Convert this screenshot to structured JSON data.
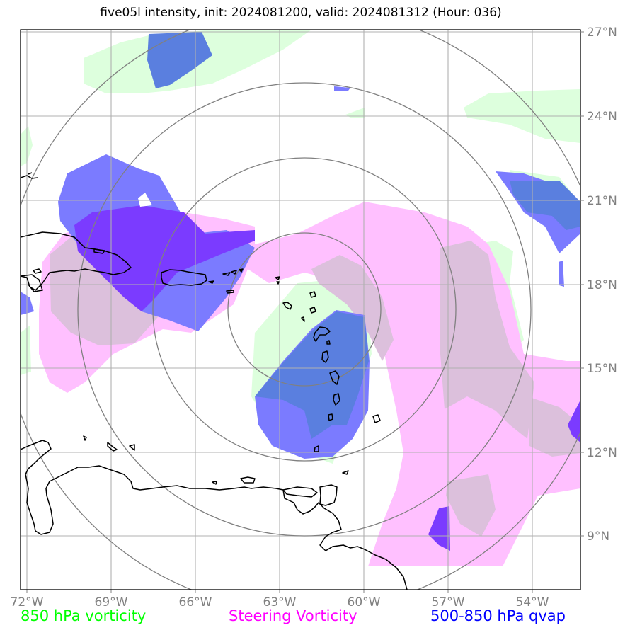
{
  "title": "five05l intensity, init: 2024081200, valid: 2024081312 (Hour: 036)",
  "axes": {
    "lon_labels": [
      "72°W",
      "69°W",
      "66°W",
      "63°W",
      "60°W",
      "57°W",
      "54°W"
    ],
    "lat_labels": [
      "27°N",
      "24°N",
      "21°N",
      "18°N",
      "15°N",
      "12°N",
      "9°N"
    ],
    "label_color": "#808080",
    "grid": true
  },
  "legend": [
    {
      "label": "850 hPa vorticity",
      "color": "#00ff00"
    },
    {
      "label": "Steering Vorticity",
      "color": "#ff00ff"
    },
    {
      "label": "500-850 hPa qvap",
      "color": "#0000ff"
    }
  ],
  "colors": {
    "vort850": "#ddffdd",
    "steering": "#ffc0ff",
    "overlap": "#dcc0dc",
    "qvap": "#7b7bff",
    "qvap_overlap": "#5a7fdf",
    "qvap_strong": "#7b3bff",
    "range_rings": "#808080",
    "coastline": "#000000"
  }
}
